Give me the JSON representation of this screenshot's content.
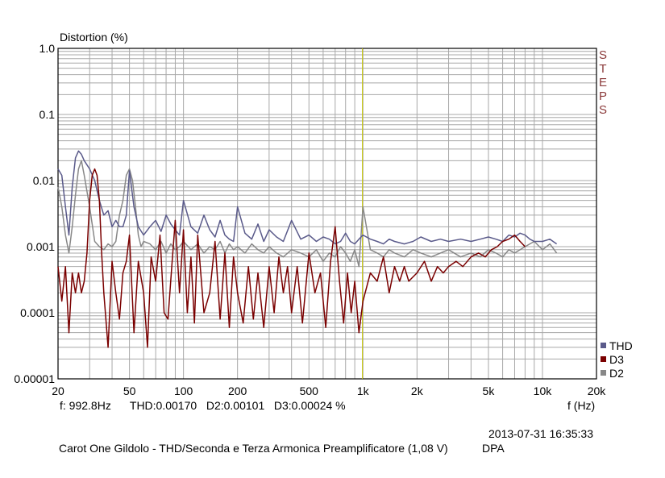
{
  "chart_data": {
    "type": "line",
    "ylabel": "Distortion (%)",
    "xlabel": "f (Hz)",
    "x_scale": "log",
    "y_scale": "log",
    "xlim": [
      20,
      20000
    ],
    "ylim": [
      1e-05,
      1.0
    ],
    "grid": true,
    "legend_placement": "bottom-right",
    "x_ticks": [
      "20",
      "50",
      "100",
      "200",
      "500",
      "1k",
      "2k",
      "5k",
      "10k",
      "20k"
    ],
    "x_tick_values": [
      20,
      50,
      100,
      200,
      500,
      1000,
      2000,
      5000,
      10000,
      20000
    ],
    "y_ticks": [
      "1.0",
      "0.1",
      "0.01",
      "0.001",
      "0.0001",
      "0.00001"
    ],
    "y_tick_values": [
      1.0,
      0.1,
      0.01,
      0.001,
      0.0001,
      1e-05
    ],
    "marker_frequency": 992.8,
    "series": [
      {
        "name": "THD",
        "color": "#5a5a8a",
        "x": [
          20,
          21,
          22,
          23,
          24,
          25,
          26,
          27,
          28,
          30,
          32,
          34,
          36,
          38,
          40,
          42,
          44,
          46,
          48,
          50,
          53,
          56,
          60,
          65,
          70,
          75,
          80,
          85,
          90,
          95,
          100,
          110,
          120,
          130,
          140,
          150,
          160,
          170,
          180,
          190,
          200,
          220,
          240,
          260,
          280,
          300,
          330,
          360,
          400,
          450,
          500,
          550,
          600,
          650,
          700,
          750,
          800,
          850,
          900,
          950,
          1000,
          1100,
          1200,
          1300,
          1400,
          1500,
          1700,
          1900,
          2100,
          2400,
          2700,
          3000,
          3500,
          4000,
          4500,
          5000,
          5500,
          6000,
          6500,
          7000,
          7500,
          8000,
          8500,
          9000,
          10000,
          11000,
          12000
        ],
        "y": [
          0.015,
          0.012,
          0.004,
          0.0015,
          0.008,
          0.022,
          0.028,
          0.025,
          0.02,
          0.015,
          0.01,
          0.005,
          0.003,
          0.0035,
          0.002,
          0.0025,
          0.002,
          0.002,
          0.003,
          0.014,
          0.004,
          0.002,
          0.0015,
          0.002,
          0.0025,
          0.0017,
          0.003,
          0.0022,
          0.0018,
          0.0015,
          0.005,
          0.002,
          0.0016,
          0.003,
          0.0018,
          0.0014,
          0.0025,
          0.0015,
          0.0013,
          0.0012,
          0.004,
          0.0016,
          0.0013,
          0.0022,
          0.0012,
          0.0018,
          0.0014,
          0.0012,
          0.0025,
          0.0013,
          0.0015,
          0.0012,
          0.0014,
          0.0013,
          0.0011,
          0.0012,
          0.0016,
          0.0012,
          0.0011,
          0.0013,
          0.0015,
          0.0013,
          0.0012,
          0.0011,
          0.0013,
          0.0012,
          0.0011,
          0.0012,
          0.0014,
          0.0012,
          0.0013,
          0.0012,
          0.0013,
          0.0012,
          0.0013,
          0.0014,
          0.0013,
          0.0012,
          0.0015,
          0.0014,
          0.0016,
          0.0015,
          0.0013,
          0.0012,
          0.0012,
          0.0013,
          0.0011
        ]
      },
      {
        "name": "D3",
        "color": "#7a0000",
        "x": [
          20,
          21,
          22,
          23,
          24,
          25,
          26,
          27,
          28,
          29,
          30,
          31,
          32,
          33,
          34,
          35,
          36,
          38,
          40,
          42,
          44,
          46,
          48,
          50,
          53,
          56,
          60,
          63,
          66,
          70,
          74,
          78,
          82,
          86,
          90,
          95,
          100,
          105,
          110,
          115,
          120,
          130,
          140,
          150,
          160,
          170,
          180,
          190,
          200,
          215,
          230,
          245,
          260,
          280,
          300,
          320,
          340,
          360,
          380,
          400,
          430,
          460,
          500,
          540,
          580,
          620,
          660,
          700,
          740,
          780,
          820,
          860,
          900,
          950,
          1000,
          1100,
          1200,
          1300,
          1400,
          1500,
          1600,
          1700,
          1800,
          2000,
          2200,
          2400,
          2600,
          2800,
          3000,
          3300,
          3600,
          4000,
          4400,
          4800,
          5200,
          5600,
          6000,
          6500,
          7000,
          7500,
          8000
        ],
        "y": [
          0.0005,
          0.00015,
          0.0005,
          5e-05,
          0.0004,
          0.0002,
          0.0004,
          0.0002,
          0.0003,
          0.0008,
          0.005,
          0.012,
          0.015,
          0.012,
          0.005,
          0.0008,
          0.0002,
          3e-05,
          0.0006,
          0.0002,
          8e-05,
          0.0004,
          0.0006,
          0.0015,
          5e-05,
          0.0006,
          0.0002,
          3e-05,
          0.0007,
          0.0003,
          0.0015,
          0.0001,
          8e-05,
          0.0005,
          0.0025,
          0.0002,
          0.0018,
          0.0001,
          0.0007,
          7e-05,
          0.0015,
          0.0001,
          0.0002,
          0.0012,
          8e-05,
          0.0008,
          6e-05,
          0.0007,
          0.0002,
          7e-05,
          0.0005,
          8e-05,
          0.0004,
          6e-05,
          0.0005,
          0.0001,
          0.0007,
          0.0002,
          0.0005,
          0.0001,
          0.0005,
          7e-05,
          0.0008,
          0.0002,
          0.0004,
          6e-05,
          0.0006,
          0.002,
          0.0003,
          7e-05,
          0.0004,
          0.0001,
          0.0003,
          5e-05,
          0.00015,
          0.0004,
          0.0003,
          0.0007,
          0.0002,
          0.0005,
          0.0003,
          0.0005,
          0.0003,
          0.0004,
          0.0006,
          0.0003,
          0.0005,
          0.0004,
          0.0005,
          0.0006,
          0.0005,
          0.0007,
          0.0008,
          0.0007,
          0.0009,
          0.001,
          0.0012,
          0.0013,
          0.0015,
          0.0012,
          0.001
        ]
      },
      {
        "name": "D2",
        "color": "#888888",
        "x": [
          20,
          21,
          22,
          23,
          24,
          25,
          26,
          27,
          28,
          30,
          32,
          34,
          36,
          38,
          40,
          42,
          44,
          46,
          48,
          50,
          52,
          54,
          56,
          58,
          60,
          65,
          70,
          75,
          80,
          85,
          90,
          95,
          100,
          110,
          120,
          130,
          140,
          150,
          160,
          170,
          180,
          190,
          200,
          220,
          240,
          260,
          280,
          300,
          330,
          360,
          400,
          450,
          500,
          550,
          600,
          650,
          700,
          750,
          800,
          850,
          900,
          950,
          1000,
          1100,
          1200,
          1300,
          1400,
          1500,
          1700,
          1900,
          2100,
          2400,
          2700,
          3000,
          3500,
          4000,
          4500,
          5000,
          5500,
          6000,
          6500,
          7000,
          8000,
          9000,
          10000,
          11000,
          12000
        ],
        "y": [
          0.008,
          0.004,
          0.0015,
          0.0008,
          0.002,
          0.006,
          0.015,
          0.02,
          0.012,
          0.004,
          0.0012,
          0.001,
          0.0009,
          0.0011,
          0.001,
          0.0012,
          0.003,
          0.005,
          0.012,
          0.015,
          0.01,
          0.004,
          0.0015,
          0.001,
          0.0012,
          0.0011,
          0.0009,
          0.0012,
          0.0008,
          0.0011,
          0.0009,
          0.001,
          0.0012,
          0.0009,
          0.0011,
          0.0008,
          0.001,
          0.0009,
          0.0012,
          0.0008,
          0.0011,
          0.0009,
          0.001,
          0.0008,
          0.0011,
          0.0009,
          0.0008,
          0.001,
          0.0008,
          0.0007,
          0.0009,
          0.0008,
          0.0007,
          0.0009,
          0.0006,
          0.0008,
          0.0007,
          0.001,
          0.0008,
          0.0006,
          0.0009,
          0.0005,
          0.004,
          0.0009,
          0.0008,
          0.0007,
          0.0009,
          0.0008,
          0.0007,
          0.0009,
          0.0008,
          0.0007,
          0.0008,
          0.0009,
          0.0007,
          0.0008,
          0.0007,
          0.0009,
          0.0008,
          0.0007,
          0.0009,
          0.0008,
          0.001,
          0.0012,
          0.0009,
          0.0011,
          0.0008
        ]
      }
    ]
  },
  "readout": {
    "text": "f: 992.8Hz      THD:0.00170   D2:0.00101   D3:0.00024 %"
  },
  "side_label": "STEPS",
  "timestamp": "2013-07-31 16:35:33",
  "footer": {
    "title": "Carot One Gildolo - THD/Seconda e Terza Armonica Preamplificatore (1,08 V)",
    "tag": "DPA"
  },
  "colors": {
    "grid": "#a8a8a8",
    "marker": "#c8c800",
    "axis": "#000000",
    "side_label": "#8b3a3a"
  }
}
